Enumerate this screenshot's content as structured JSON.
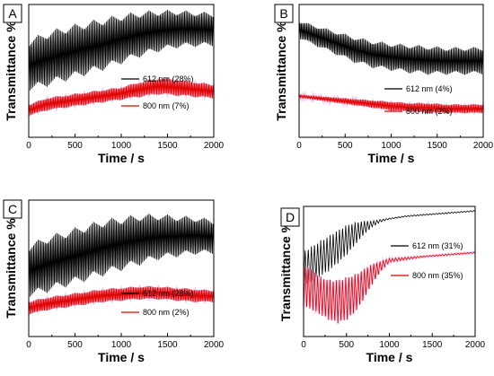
{
  "chart_data": [
    {
      "panel": "A",
      "type": "line",
      "xlabel": "Time / s",
      "ylabel": "Transmittance %",
      "xlim": [
        0,
        2000
      ],
      "ylim": [
        0,
        100
      ],
      "xticks": [
        "0",
        "500",
        "1000",
        "1500",
        "2000"
      ],
      "legend_placement": "center-right",
      "series": [
        {
          "name": "612 nm (28%)",
          "color": "#000000",
          "x": [
            0,
            200,
            400,
            600,
            800,
            1000,
            1200,
            1400,
            1600,
            1800,
            2000
          ],
          "upper": [
            74,
            80,
            84,
            87,
            90,
            93,
            95,
            96,
            96,
            95,
            94
          ],
          "lower": [
            34,
            38,
            42,
            46,
            50,
            55,
            60,
            64,
            67,
            68,
            68
          ]
        },
        {
          "name": "800 nm (7%)",
          "color": "#e00000",
          "x": [
            0,
            200,
            400,
            600,
            800,
            1000,
            1200,
            1400,
            1600,
            1800,
            2000
          ],
          "upper": [
            25,
            30,
            32,
            34,
            36,
            38,
            42,
            45,
            44,
            42,
            40
          ],
          "lower": [
            16,
            20,
            22,
            24,
            26,
            28,
            30,
            32,
            31,
            30,
            29
          ]
        }
      ]
    },
    {
      "panel": "B",
      "type": "line",
      "xlabel": "Time / s",
      "ylabel": "Transmittance %",
      "xlim": [
        0,
        2000
      ],
      "ylim": [
        0,
        100
      ],
      "xticks": [
        "0",
        "500",
        "1000",
        "1500",
        "2000"
      ],
      "legend_placement": "center-right",
      "series": [
        {
          "name": "612 nm (4%)",
          "color": "#000000",
          "x": [
            0,
            200,
            400,
            600,
            800,
            1000,
            1200,
            1400,
            1600,
            1800,
            2000
          ],
          "upper": [
            88,
            84,
            80,
            76,
            73,
            71,
            70,
            69,
            68,
            68,
            68
          ],
          "lower": [
            74,
            68,
            62,
            56,
            52,
            50,
            48,
            47,
            47,
            47,
            47
          ]
        },
        {
          "name": "800 nm (2%)",
          "color": "#e00000",
          "x": [
            0,
            200,
            400,
            600,
            800,
            1000,
            1200,
            1400,
            1600,
            1800,
            2000
          ],
          "upper": [
            32,
            31,
            30,
            29,
            28,
            27,
            26,
            26,
            25,
            25,
            25
          ],
          "lower": [
            30,
            28,
            26,
            24,
            22,
            20,
            19,
            18,
            18,
            18,
            18
          ]
        }
      ]
    },
    {
      "panel": "C",
      "type": "line",
      "xlabel": "Time / s",
      "ylabel": "Transmittance %",
      "xlim": [
        0,
        2000
      ],
      "ylim": [
        0,
        100
      ],
      "xticks": [
        "0",
        "500",
        "1000",
        "1500",
        "2000"
      ],
      "legend_placement": "center-right",
      "series": [
        {
          "name": "612 nm (28%)",
          "color": "#000000",
          "x": [
            0,
            200,
            400,
            600,
            800,
            1000,
            1200,
            1400,
            1600,
            1800,
            2000
          ],
          "upper": [
            68,
            74,
            78,
            82,
            86,
            88,
            90,
            90,
            89,
            88,
            86
          ],
          "lower": [
            28,
            32,
            36,
            40,
            44,
            48,
            52,
            56,
            58,
            60,
            60
          ]
        },
        {
          "name": "800 nm (2%)",
          "color": "#e00000",
          "x": [
            0,
            200,
            400,
            600,
            800,
            1000,
            1200,
            1400,
            1600,
            1800,
            2000
          ],
          "upper": [
            26,
            29,
            31,
            33,
            35,
            36,
            37,
            37,
            36,
            35,
            34
          ],
          "lower": [
            16,
            19,
            21,
            23,
            25,
            26,
            27,
            27,
            26,
            25,
            25
          ]
        }
      ]
    },
    {
      "panel": "D",
      "type": "line",
      "xlabel": "Time / s",
      "ylabel": "Transmittance %",
      "xlim": [
        0,
        2000
      ],
      "ylim": [
        0,
        100
      ],
      "xticks": [
        "0",
        "500",
        "1000",
        "1500",
        "2000"
      ],
      "legend_placement": "center-right",
      "series": [
        {
          "name": "612 nm (31%)",
          "color": "#000000",
          "x": [
            0,
            100,
            200,
            300,
            400,
            500,
            600,
            700,
            800,
            900,
            1000,
            1200,
            1400,
            1600,
            1800,
            2000
          ],
          "upper": [
            66,
            70,
            74,
            78,
            82,
            86,
            88,
            89,
            89,
            90,
            91,
            93,
            94,
            95,
            96,
            97
          ],
          "lower": [
            38,
            42,
            46,
            50,
            56,
            62,
            70,
            78,
            84,
            88,
            90,
            92,
            93,
            94,
            95,
            96
          ]
        },
        {
          "name": "800 nm (35%)",
          "color": "#e00000",
          "x": [
            0,
            100,
            200,
            300,
            400,
            500,
            600,
            700,
            800,
            900,
            1000,
            1200,
            1400,
            1600,
            1800,
            2000
          ],
          "upper": [
            55,
            52,
            46,
            44,
            44,
            46,
            48,
            52,
            56,
            58,
            60,
            61,
            62,
            63,
            64,
            65
          ],
          "lower": [
            22,
            20,
            16,
            12,
            10,
            12,
            18,
            28,
            40,
            50,
            57,
            59,
            61,
            62,
            63,
            64
          ]
        }
      ]
    }
  ]
}
